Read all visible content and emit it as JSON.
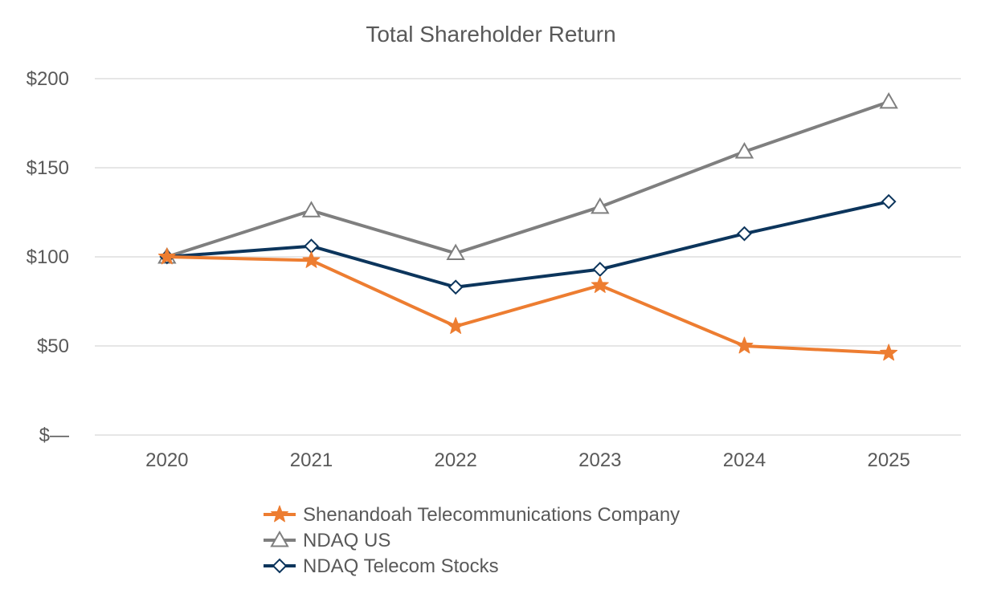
{
  "chart_data": {
    "type": "line",
    "title": "Total Shareholder Return",
    "xlabel": "",
    "ylabel": "",
    "categories": [
      "2020",
      "2021",
      "2022",
      "2023",
      "2024",
      "2025"
    ],
    "ylim": [
      0,
      200
    ],
    "yticks": [
      {
        "value": 0,
        "label": "$—"
      },
      {
        "value": 50,
        "label": "$50"
      },
      {
        "value": 100,
        "label": "$100"
      },
      {
        "value": 150,
        "label": "$150"
      },
      {
        "value": 200,
        "label": "$200"
      }
    ],
    "grid": true,
    "legend_position": "bottom",
    "series": [
      {
        "name": "Shenandoah Telecommunications Company",
        "values": [
          100,
          98,
          61,
          84,
          50,
          46
        ],
        "color": "#ed7d31",
        "marker": "star"
      },
      {
        "name": "NDAQ US",
        "values": [
          100,
          126,
          102,
          128,
          159,
          187
        ],
        "color": "#7f7f7f",
        "marker": "triangle"
      },
      {
        "name": "NDAQ Telecom Stocks",
        "values": [
          100,
          106,
          83,
          93,
          113,
          131
        ],
        "color": "#0c355c",
        "marker": "diamond"
      }
    ]
  }
}
